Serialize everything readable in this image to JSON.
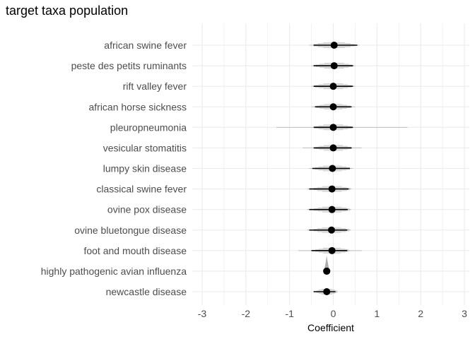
{
  "chart_data": {
    "type": "scatter",
    "title": "target taxa population",
    "xlabel": "Coefficient",
    "ylabel": "",
    "xlim": [
      -3,
      3
    ],
    "x_ticks": [
      "-3",
      "-2",
      "-1",
      "0",
      "1",
      "2",
      "3"
    ],
    "grid": true,
    "legend": "none",
    "colors": {
      "point": "#000000",
      "interval": "#000000",
      "density": "#9e9e9e",
      "grid": "#ebebeb",
      "axis_text": "#4d4d4d"
    },
    "categories": [
      "african swine fever",
      "peste des petits ruminants",
      "rift valley fever",
      "african horse sickness",
      "pleuropneumonia",
      "vesicular stomatitis",
      "lumpy skin disease",
      "classical swine fever",
      "ovine pox disease",
      "ovine bluetongue disease",
      "foot and mouth disease",
      "highly pathogenic avian influenza",
      "newcastle disease"
    ],
    "points": [
      {
        "category": "african swine fever",
        "estimate": 0.02,
        "lower": -0.45,
        "upper": 0.55,
        "dist_min": -0.55,
        "dist_max": 0.6
      },
      {
        "category": "peste des petits ruminants",
        "estimate": 0.02,
        "lower": -0.45,
        "upper": 0.45,
        "dist_min": -0.5,
        "dist_max": 0.5
      },
      {
        "category": "rift valley fever",
        "estimate": 0.0,
        "lower": -0.45,
        "upper": 0.45,
        "dist_min": -0.5,
        "dist_max": 0.5
      },
      {
        "category": "african horse sickness",
        "estimate": 0.0,
        "lower": -0.42,
        "upper": 0.42,
        "dist_min": -0.5,
        "dist_max": 0.5
      },
      {
        "category": "pleuropneumonia",
        "estimate": 0.0,
        "lower": -0.45,
        "upper": 0.45,
        "dist_min": -1.3,
        "dist_max": 1.7
      },
      {
        "category": "vesicular stomatitis",
        "estimate": 0.0,
        "lower": -0.45,
        "upper": 0.42,
        "dist_min": -0.7,
        "dist_max": 0.65
      },
      {
        "category": "lumpy skin disease",
        "estimate": -0.02,
        "lower": -0.48,
        "upper": 0.38,
        "dist_min": -0.55,
        "dist_max": 0.45
      },
      {
        "category": "classical swine fever",
        "estimate": -0.03,
        "lower": -0.55,
        "upper": 0.35,
        "dist_min": -0.6,
        "dist_max": 0.4
      },
      {
        "category": "ovine pox disease",
        "estimate": -0.03,
        "lower": -0.55,
        "upper": 0.33,
        "dist_min": -0.6,
        "dist_max": 0.4
      },
      {
        "category": "ovine bluetongue disease",
        "estimate": -0.04,
        "lower": -0.55,
        "upper": 0.32,
        "dist_min": -0.6,
        "dist_max": 0.4
      },
      {
        "category": "foot and mouth disease",
        "estimate": -0.03,
        "lower": -0.5,
        "upper": 0.32,
        "dist_min": -0.8,
        "dist_max": 0.65
      },
      {
        "category": "highly pathogenic avian influenza",
        "estimate": -0.15,
        "lower": -0.18,
        "upper": -0.12,
        "dist_min": -0.22,
        "dist_max": -0.08
      },
      {
        "category": "newcastle disease",
        "estimate": -0.15,
        "lower": -0.45,
        "upper": 0.05,
        "dist_min": -0.45,
        "dist_max": 0.1
      }
    ]
  }
}
